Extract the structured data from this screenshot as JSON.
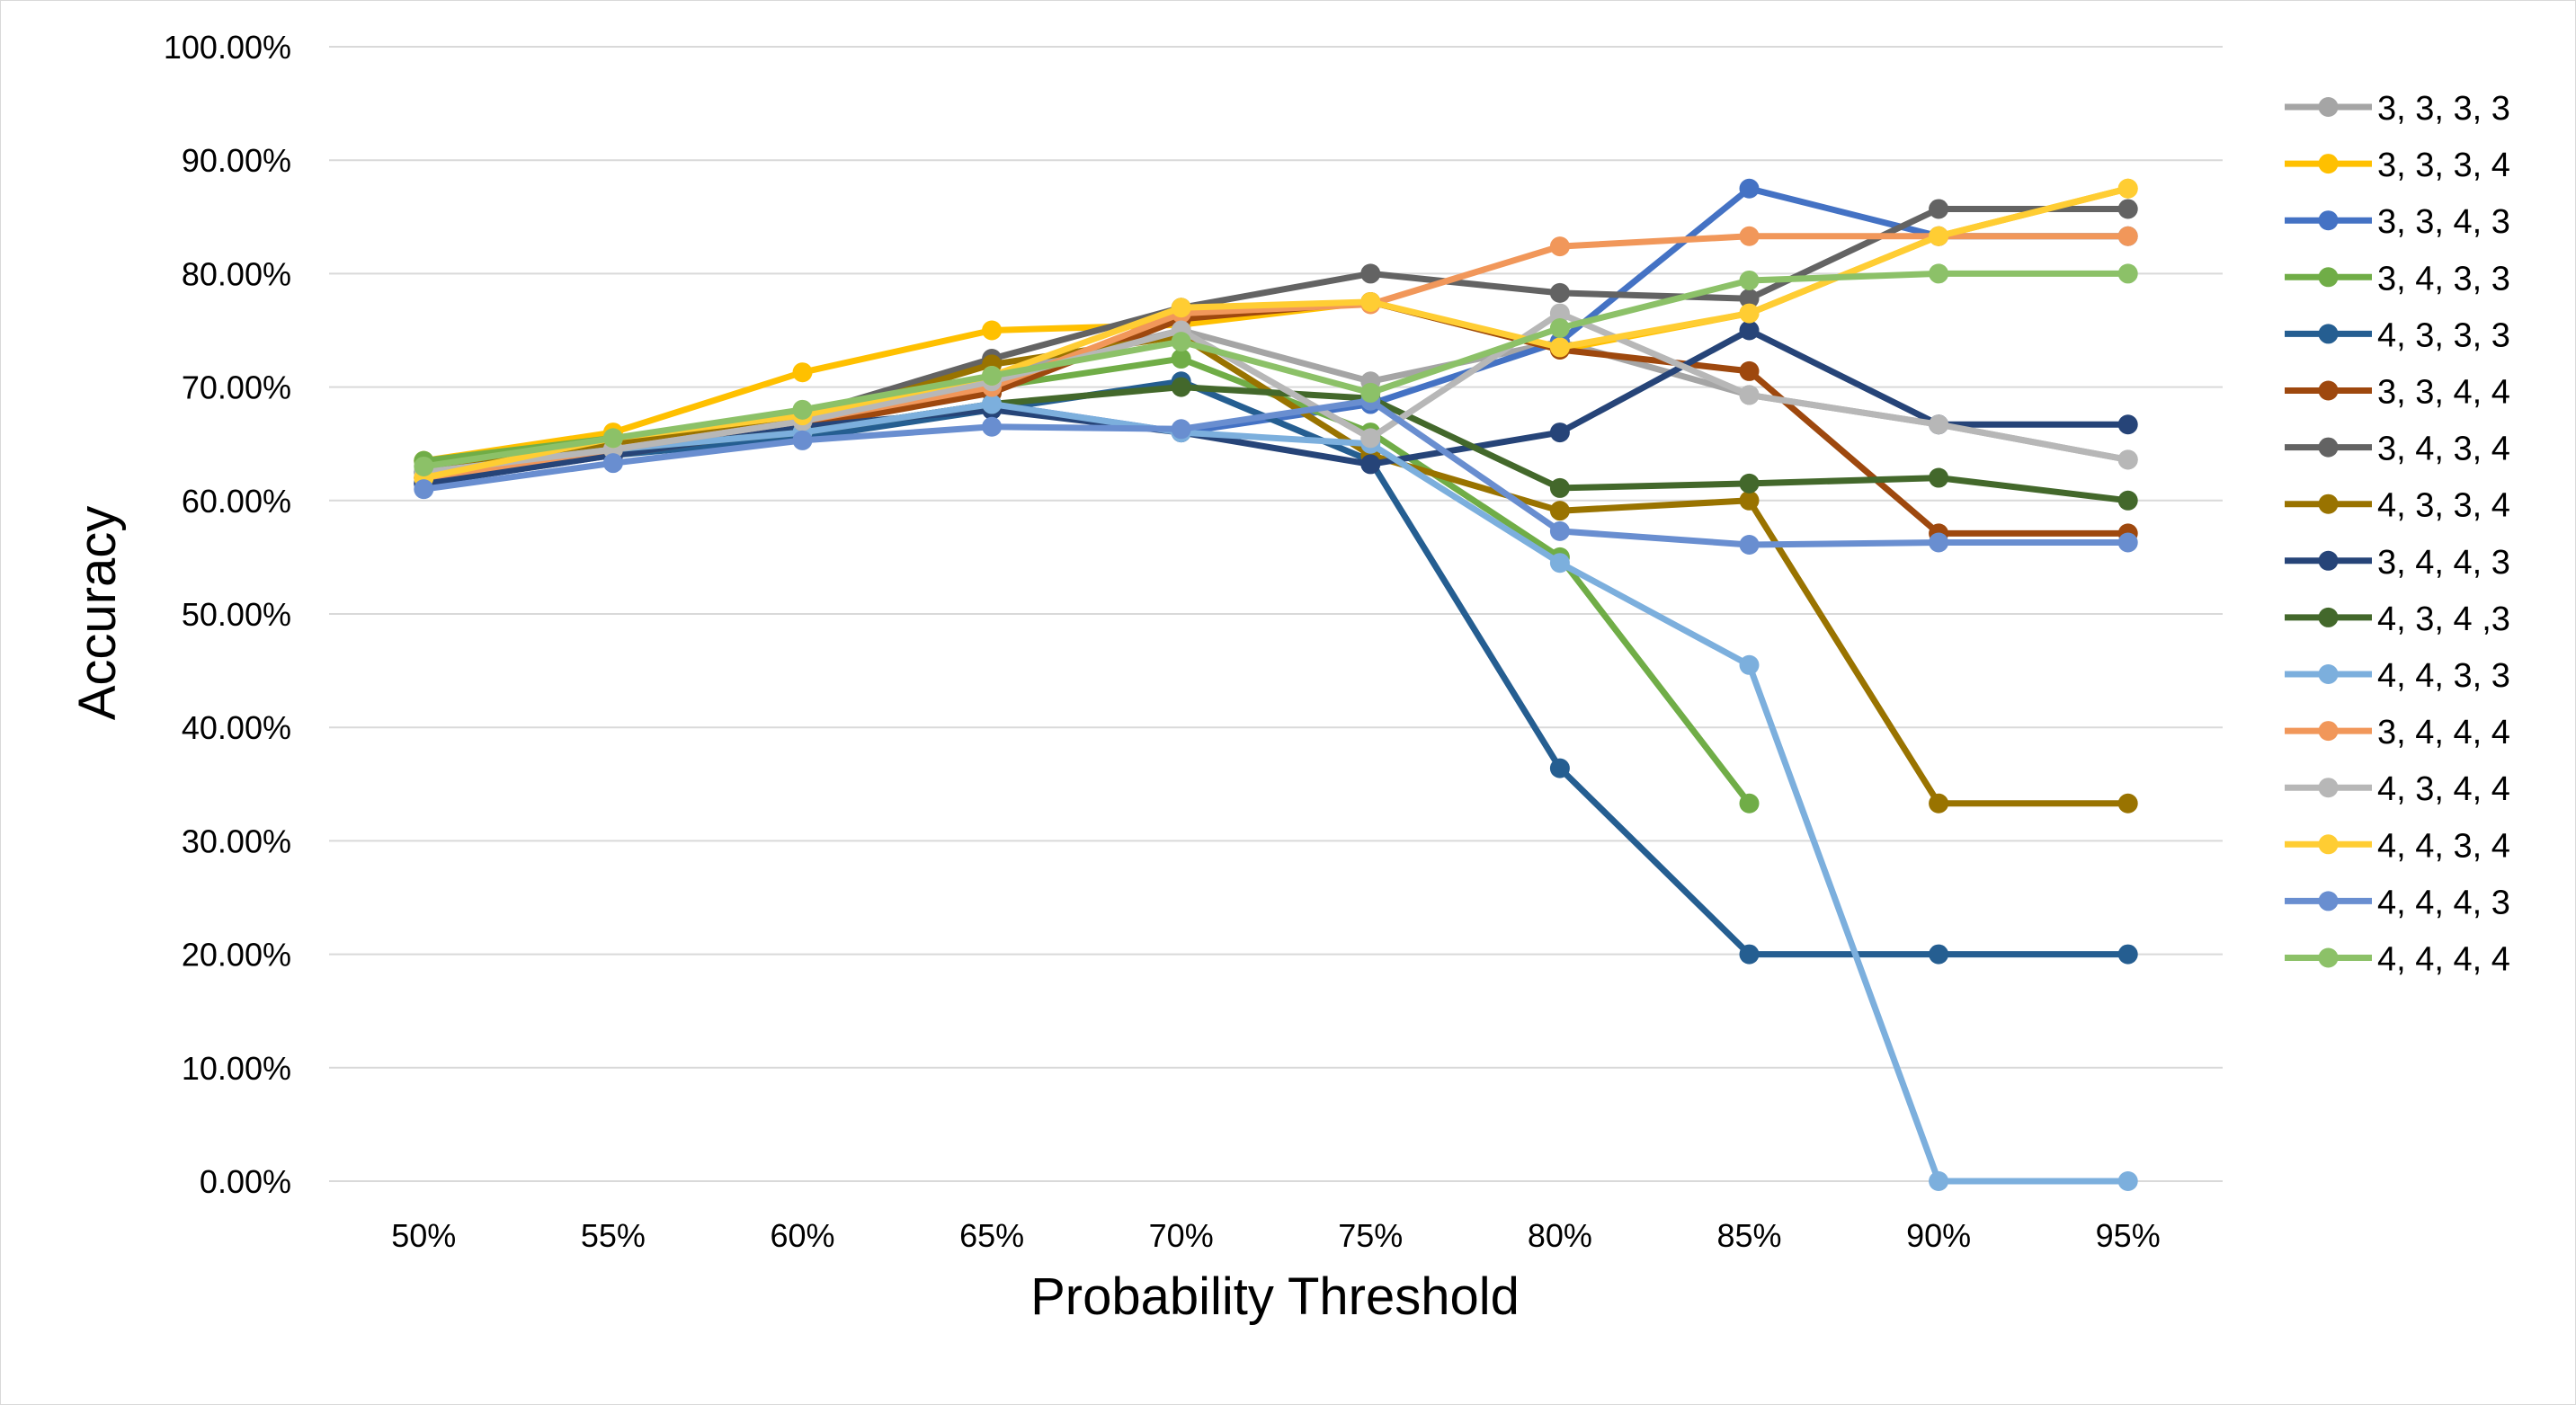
{
  "chart_data": {
    "type": "line",
    "xlabel": "Probability Threshold",
    "ylabel": "Accuracy",
    "categories": [
      "50%",
      "55%",
      "60%",
      "65%",
      "70%",
      "75%",
      "80%",
      "85%",
      "90%",
      "95%"
    ],
    "yticks": [
      "0.00%",
      "10.00%",
      "20.00%",
      "30.00%",
      "40.00%",
      "50.00%",
      "60.00%",
      "70.00%",
      "80.00%",
      "90.00%",
      "100.00%"
    ],
    "ylim": [
      0,
      100
    ],
    "grid": "horizontal",
    "legend_position": "right",
    "series": [
      {
        "name": "3, 3, 3, 3",
        "color": "#A5A5A5",
        "values": [
          62.5,
          64.5,
          66.5,
          71.0,
          75.0,
          70.5,
          74.0,
          69.3,
          66.7,
          63.6
        ]
      },
      {
        "name": "3, 3, 3, 4",
        "color": "#FFC000",
        "values": [
          63.5,
          66.0,
          71.3,
          75.0,
          75.5,
          77.5,
          73.3,
          76.5,
          83.3,
          87.5
        ]
      },
      {
        "name": "3, 3, 4, 3",
        "color": "#4472C4",
        "values": [
          61.5,
          64.0,
          66.0,
          68.5,
          66.0,
          68.5,
          74.0,
          87.5,
          83.3,
          83.3
        ]
      },
      {
        "name": "3, 4, 3, 3",
        "color": "#70AD47",
        "values": [
          63.5,
          65.5,
          67.5,
          70.0,
          72.5,
          66.0,
          55.0,
          33.3,
          null,
          null
        ]
      },
      {
        "name": "4, 3, 3, 3",
        "color": "#255E91",
        "values": [
          62.0,
          64.0,
          65.5,
          68.0,
          70.5,
          63.5,
          36.4,
          20.0,
          20.0,
          20.0
        ]
      },
      {
        "name": "3, 3, 4, 4",
        "color": "#9E480E",
        "values": [
          62.0,
          64.0,
          66.5,
          69.5,
          76.0,
          77.5,
          73.3,
          71.4,
          57.1,
          57.1
        ]
      },
      {
        "name": "3, 4, 3, 4",
        "color": "#636363",
        "values": [
          62.5,
          65.0,
          67.5,
          72.5,
          77.0,
          80.0,
          78.3,
          77.8,
          85.7,
          85.7
        ]
      },
      {
        "name": "4, 3, 3, 4",
        "color": "#997300",
        "values": [
          62.5,
          65.0,
          67.0,
          72.0,
          74.5,
          64.0,
          59.1,
          60.0,
          33.3,
          33.3
        ]
      },
      {
        "name": "3, 4, 4, 3",
        "color": "#264478",
        "values": [
          61.5,
          64.0,
          66.5,
          68.0,
          66.0,
          63.2,
          66.0,
          75.0,
          66.7,
          66.7
        ]
      },
      {
        "name": "4, 3, 4 ,3",
        "color": "#43682B",
        "values": [
          62.5,
          64.5,
          66.0,
          68.5,
          70.0,
          69.0,
          61.1,
          61.5,
          62.0,
          60.0
        ]
      },
      {
        "name": "4, 4, 3, 3",
        "color": "#7CAFDD",
        "values": [
          62.5,
          64.5,
          66.0,
          68.5,
          66.0,
          65.0,
          54.5,
          45.5,
          0.0,
          0.0
        ]
      },
      {
        "name": "3, 4, 4, 4",
        "color": "#F1975A",
        "values": [
          62.0,
          64.5,
          67.0,
          70.0,
          76.5,
          77.3,
          82.4,
          83.3,
          83.3,
          83.3
        ]
      },
      {
        "name": "4, 3, 4, 4",
        "color": "#B7B7B7",
        "values": [
          62.5,
          64.5,
          67.0,
          70.5,
          75.0,
          65.5,
          76.5,
          69.3,
          66.7,
          63.6
        ]
      },
      {
        "name": "4, 4, 3, 4",
        "color": "#FFCD33",
        "values": [
          62.0,
          65.5,
          67.5,
          71.0,
          77.0,
          77.5,
          73.5,
          76.5,
          83.3,
          87.5
        ]
      },
      {
        "name": "4, 4, 4, 3",
        "color": "#698ED0",
        "values": [
          61.0,
          63.3,
          65.3,
          66.5,
          66.3,
          68.8,
          57.3,
          56.1,
          56.3,
          56.3
        ]
      },
      {
        "name": "4, 4, 4, 4",
        "color": "#8CC168",
        "values": [
          63.0,
          65.5,
          68.0,
          71.0,
          74.0,
          69.5,
          75.2,
          79.4,
          80.0,
          80.0
        ]
      }
    ]
  }
}
